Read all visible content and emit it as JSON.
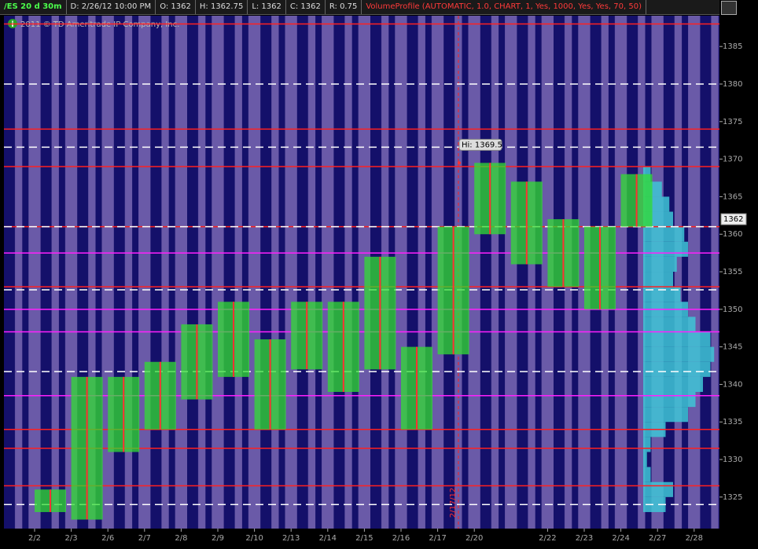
{
  "header": {
    "symbol": "/ES 20 d 30m",
    "fields": [
      "D: 2/26/12 10:00 PM",
      "O: 1362",
      "H: 1362.75",
      "L: 1362",
      "C: 1362",
      "R: 0.75"
    ],
    "study": "VolumeProfile (AUTOMATIC, 1.0, CHART, 1, Yes, 1000, Yes, Yes, 70, 50)"
  },
  "copyright": "2011 © TD Ameritrade IP Company, Inc.",
  "chart_data": {
    "type": "range",
    "categories": [
      "2/2",
      "2/3",
      "2/6",
      "2/7",
      "2/8",
      "2/9",
      "2/10",
      "2/13",
      "2/14",
      "2/15",
      "2/16",
      "2/17",
      "2/20",
      null,
      "2/22",
      "2/23",
      "2/24",
      "2/27",
      "2/28"
    ],
    "series": [
      {
        "name": "High",
        "color": "#33dd33",
        "values": [
          1326,
          1341,
          1341,
          1343,
          1348,
          1351,
          1346,
          1351,
          1351,
          1357,
          1345,
          1361,
          1369.5,
          1367,
          1362,
          1361,
          1368,
          null,
          null
        ]
      },
      {
        "name": "Low",
        "color": "#ff3333",
        "values": [
          1323,
          1322,
          1331,
          1334,
          1338,
          1341,
          1334,
          1342,
          1339,
          1342,
          1334,
          1344,
          1360,
          1356,
          1353,
          1350,
          1361,
          null,
          null
        ]
      }
    ],
    "hlines": [
      {
        "color": "#ff2020",
        "dashed": false,
        "values": [
          1388,
          1374,
          1369,
          1361,
          1353,
          1334,
          1331.5,
          1326.5
        ]
      },
      {
        "color": "#ff20ff",
        "dashed": false,
        "values": [
          1357.5,
          1350,
          1347,
          1338.5
        ]
      },
      {
        "color": "#ffffff",
        "dashed": true,
        "values": [
          1380,
          1371.6,
          1361,
          1352.6,
          1341.7,
          1324
        ]
      }
    ],
    "volume_profile": {
      "color": "#3ec6d6",
      "prices": [
        1324,
        1326,
        1328,
        1330,
        1332,
        1334,
        1336,
        1338,
        1340,
        1342,
        1344,
        1346,
        1348,
        1350,
        1352,
        1354,
        1356,
        1358,
        1360,
        1362,
        1364,
        1366,
        1368
      ],
      "values": [
        30,
        40,
        10,
        5,
        10,
        30,
        60,
        70,
        80,
        90,
        95,
        90,
        70,
        60,
        50,
        40,
        45,
        60,
        55,
        40,
        35,
        25,
        10
      ]
    },
    "annotation": {
      "text": "Hi: 1369.5",
      "value": 1369.5
    },
    "last_price": 1362,
    "vline_label": "2/17/12",
    "ylim": [
      1320.8,
      1389.1
    ],
    "yticks": [
      1325,
      1330,
      1335,
      1340,
      1345,
      1350,
      1355,
      1360,
      1365,
      1370,
      1375,
      1380,
      1385
    ]
  }
}
